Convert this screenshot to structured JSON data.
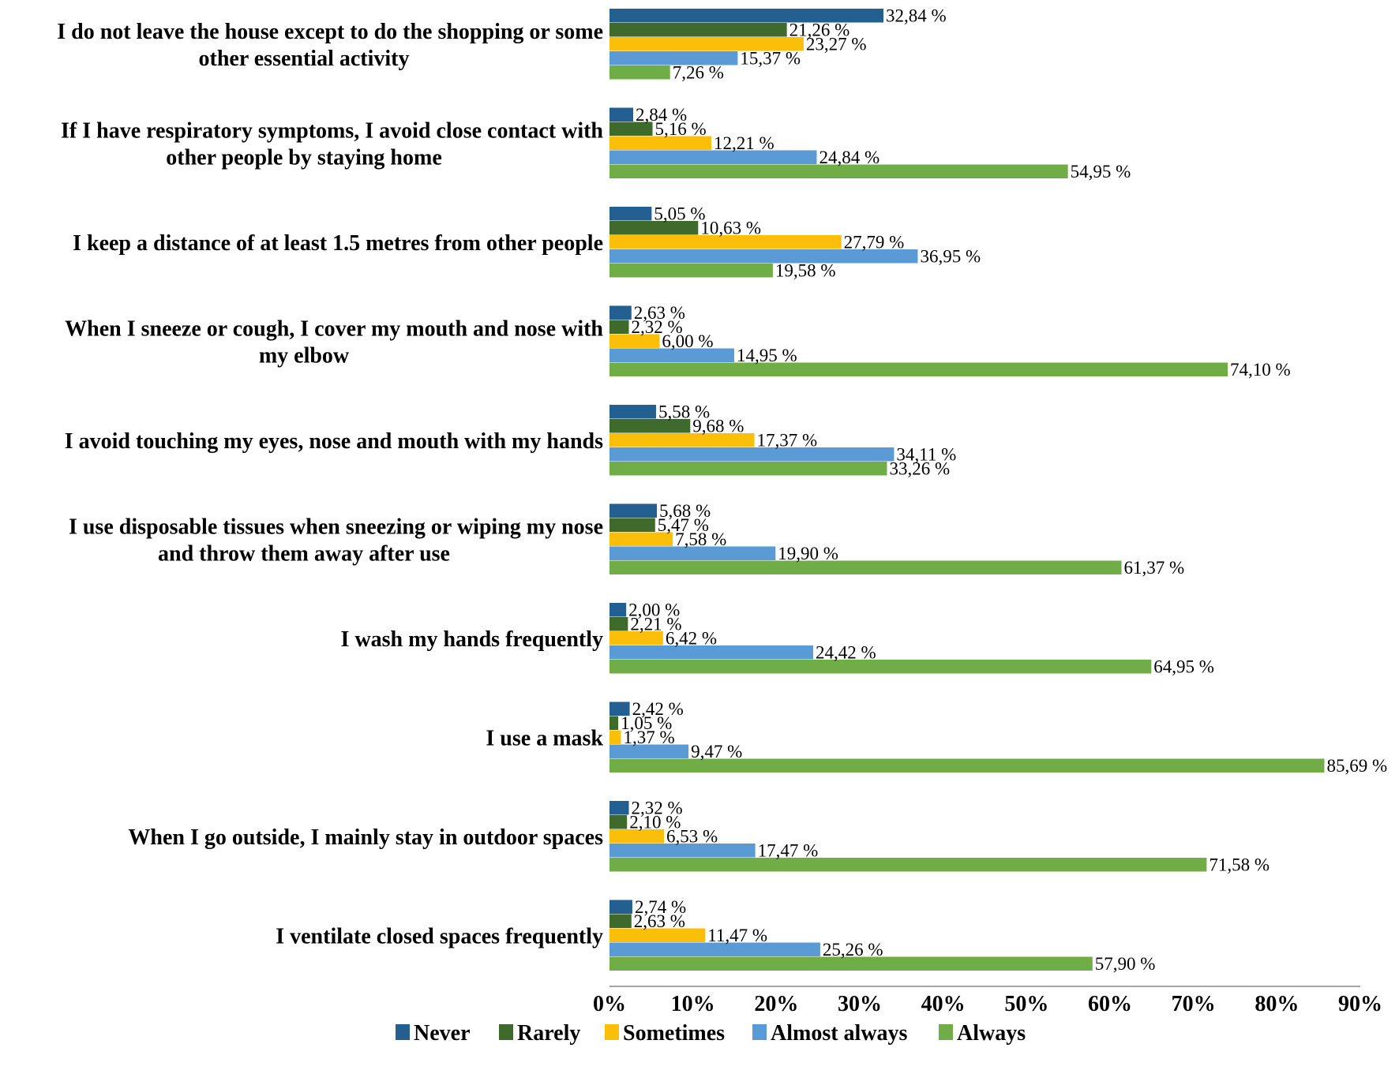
{
  "chart_data": {
    "type": "bar",
    "orientation": "horizontal",
    "categories": [
      [
        "I do not leave the house except to do the shopping or some",
        "other essential activity"
      ],
      [
        "If I have respiratory symptoms, I avoid close contact with",
        "other people by staying home"
      ],
      [
        "I keep a distance of at least 1.5 metres from other people"
      ],
      [
        "When I sneeze or cough, I cover my mouth and nose with",
        "my elbow"
      ],
      [
        "I avoid touching my eyes, nose and mouth with my hands"
      ],
      [
        "I use disposable tissues when sneezing or wiping my nose",
        "and throw them away after use"
      ],
      [
        "I wash my hands frequently"
      ],
      [
        "I use a mask"
      ],
      [
        "When I go outside, I mainly stay in outdoor spaces"
      ],
      [
        "I ventilate closed spaces frequently"
      ]
    ],
    "series": [
      {
        "name": "Never",
        "color": "#245f91",
        "values": [
          32.84,
          2.84,
          5.05,
          2.63,
          5.58,
          5.68,
          2.0,
          2.42,
          2.32,
          2.74
        ],
        "labels": [
          "32,84 %",
          "2,84 %",
          "5,05 %",
          "2,63 %",
          "5,58 %",
          "5,68 %",
          "2,00 %",
          "2,42 %",
          "2,32 %",
          "2,74 %"
        ]
      },
      {
        "name": "Rarely",
        "color": "#3e6a2c",
        "values": [
          21.26,
          5.16,
          10.63,
          2.32,
          9.68,
          5.47,
          2.21,
          1.05,
          2.1,
          2.63
        ],
        "labels": [
          "21,26 %",
          "5,16 %",
          "10,63 %",
          "2,32 %",
          "9,68 %",
          "5,47 %",
          "2,21 %",
          "1,05 %",
          "2,10 %",
          "2,63 %"
        ]
      },
      {
        "name": "Sometimes",
        "color": "#fbbf09",
        "values": [
          23.27,
          12.21,
          27.79,
          6.0,
          17.37,
          7.58,
          6.42,
          1.37,
          6.53,
          11.47
        ],
        "labels": [
          "23,27 %",
          "12,21 %",
          "27,79 %",
          "6,00 %",
          "17,37 %",
          "7,58 %",
          "6,42 %",
          "1,37 %",
          "6,53 %",
          "11,47 %"
        ]
      },
      {
        "name": "Almost always",
        "color": "#5b9bd5",
        "values": [
          15.37,
          24.84,
          36.95,
          14.95,
          34.11,
          19.9,
          24.42,
          9.47,
          17.47,
          25.26
        ],
        "labels": [
          "15,37 %",
          "24,84 %",
          "36,95 %",
          "14,95 %",
          "34,11 %",
          "19,90 %",
          "24,42 %",
          "9,47 %",
          "17,47 %",
          "25,26 %"
        ]
      },
      {
        "name": "Always",
        "color": "#70ad47",
        "values": [
          7.26,
          54.95,
          19.58,
          74.1,
          33.26,
          61.37,
          64.95,
          85.69,
          71.58,
          57.9
        ],
        "labels": [
          "7,26 %",
          "54,95 %",
          "19,58 %",
          "74,10 %",
          "33,26 %",
          "61,37 %",
          "64,95 %",
          "85,69 %",
          "71,58 %",
          "57,90 %"
        ]
      }
    ],
    "xlim": [
      0,
      90
    ],
    "xticks": [
      0,
      10,
      20,
      30,
      40,
      50,
      60,
      70,
      80,
      90
    ],
    "xtick_labels": [
      "0%",
      "10%",
      "20%",
      "30%",
      "40%",
      "50%",
      "60%",
      "70%",
      "80%",
      "90%"
    ],
    "grid": false,
    "legend": {
      "placement": "bottom",
      "entries": [
        "Never",
        "Rarely",
        "Sometimes",
        "Almost always",
        "Always"
      ]
    }
  }
}
